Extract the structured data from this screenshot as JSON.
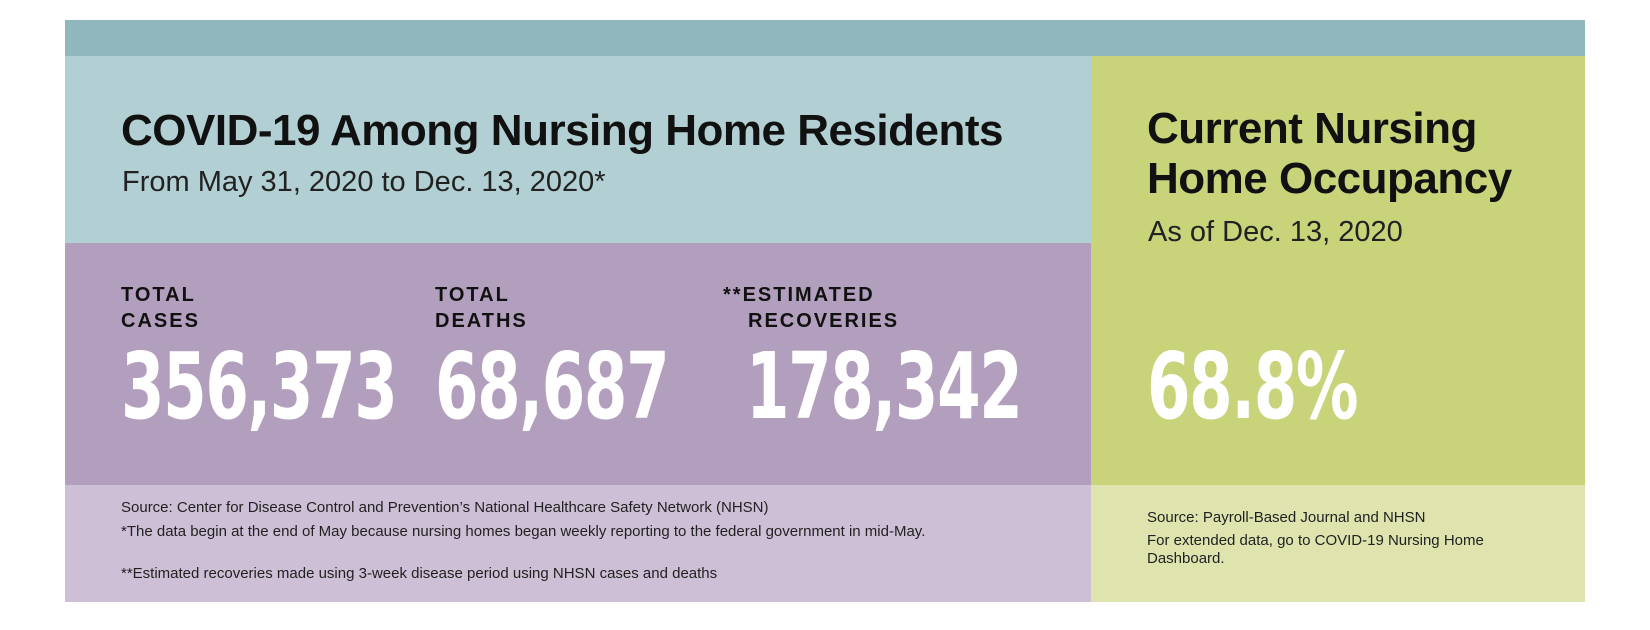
{
  "left_panel": {
    "title": "COVID-19 Among Nursing Home Residents",
    "subtitle": "From May 31, 2020 to Dec. 13, 2020*",
    "stats": [
      {
        "label_line1": "TOTAL",
        "label_line2": "CASES",
        "value": "356,373"
      },
      {
        "label_line1": "TOTAL",
        "label_line2": "DEATHS",
        "value": "68,687"
      },
      {
        "label_line1": "**ESTIMATED",
        "label_line2": "RECOVERIES",
        "value": "178,342"
      }
    ],
    "notes": [
      "Source: Center for Disease Control and Prevention’s National Healthcare Safety Network (NHSN)",
      "*The data begin at the end of May because nursing homes began weekly reporting to the federal government in mid-May.",
      "**Estimated recoveries made using 3-week disease period using NHSN cases and deaths"
    ]
  },
  "right_panel": {
    "title_line1": "Current Nursing",
    "title_line2": "Home Occupancy",
    "subtitle": "As of Dec. 13, 2020",
    "value": "68.8%",
    "notes": [
      "Source: Payroll-Based Journal and NHSN",
      "For extended data, go to COVID-19 Nursing Home Dashboard."
    ]
  },
  "colors": {
    "top_bar": "#90b6be",
    "title_band": "#b2d0d3",
    "stats_band": "#b29fbe",
    "notes_band": "#cdbfd6",
    "right_main": "#c9d37a",
    "right_notes": "#dfe3ae"
  }
}
